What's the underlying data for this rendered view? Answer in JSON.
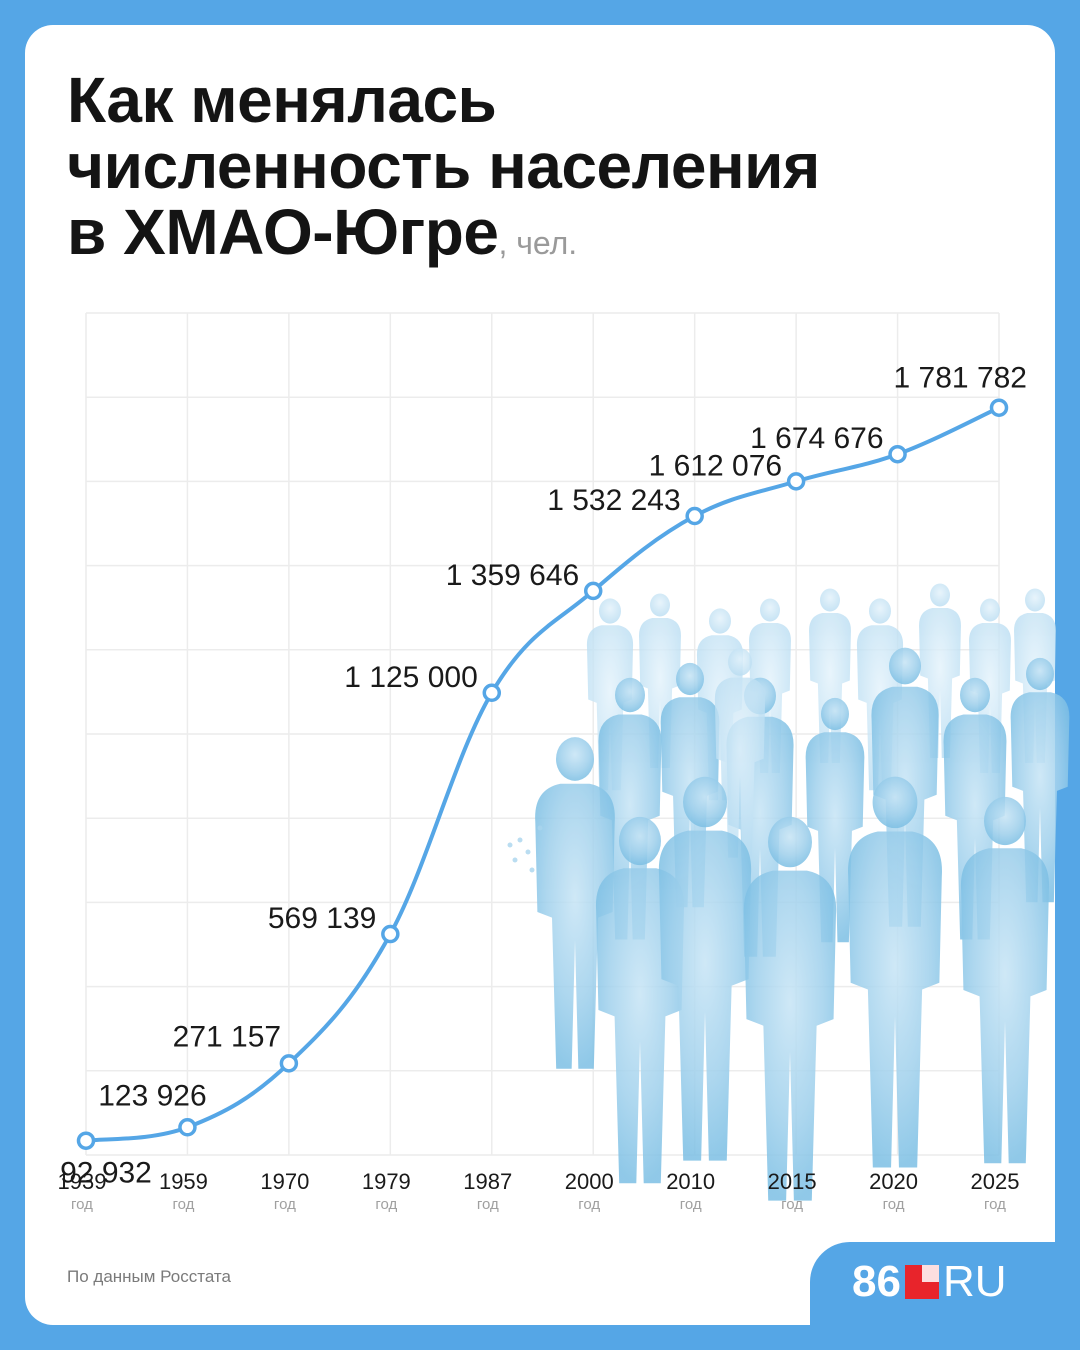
{
  "title": {
    "line1": "Как менялась",
    "line2": "численность населения",
    "line3": "в ХМАО-Югре",
    "unit": ", чел."
  },
  "source": "По данным Росстата",
  "logo": {
    "number": "86",
    "suffix": "RU"
  },
  "colors": {
    "background": "#55a6e6",
    "line": "#55a6e6",
    "grid": "#ececec",
    "logo_red": "#e8242b"
  },
  "chart_data": {
    "type": "line",
    "x": [
      "1939",
      "1959",
      "1970",
      "1979",
      "1987",
      "2000",
      "2010",
      "2015",
      "2020",
      "2025"
    ],
    "x_sublabel": "год",
    "values": [
      92932,
      123926,
      271157,
      569139,
      1125000,
      1359646,
      1532243,
      1612076,
      1674676,
      1781782
    ],
    "labels": [
      "92 932",
      "123 926",
      "271 157",
      "569 139",
      "1 125 000",
      "1 359 646",
      "1 532 243",
      "1 612 076",
      "1 674 676",
      "1 781 782"
    ],
    "ylim": [
      60000,
      2000000
    ],
    "grid": true,
    "y_ticks_shown": false
  }
}
